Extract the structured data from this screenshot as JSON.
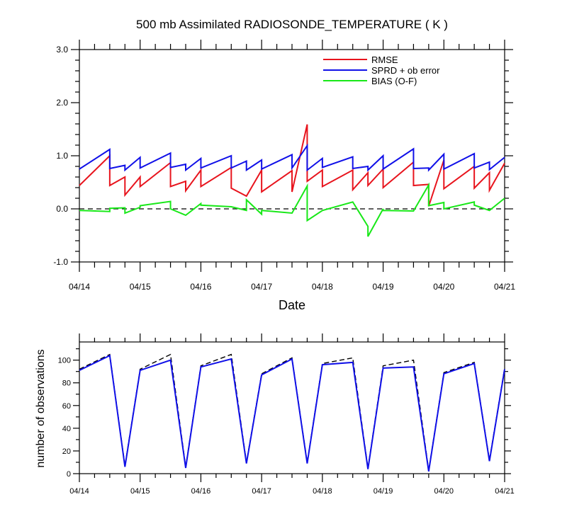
{
  "chart_data": [
    {
      "type": "line",
      "title": "500 mb Assimilated RADIOSONDE_TEMPERATURE ( K )",
      "xlabel": "Date",
      "x_tick_labels": [
        "04/14",
        "04/15",
        "04/16",
        "04/17",
        "04/18",
        "04/19",
        "04/20",
        "04/21"
      ],
      "ylim": [
        -1.0,
        3.0
      ],
      "y_tick_labels": [
        "-1.0",
        "0.0",
        "1.0",
        "2.0",
        "3.0"
      ],
      "y_ticks": [
        -1.0,
        0.0,
        1.0,
        2.0,
        3.0
      ],
      "legend_position": "top-right",
      "reference_line": 0.0,
      "series": [
        {
          "name": "RMSE",
          "color": "#e8141d",
          "points": [
            [
              0.0,
              0.44
            ],
            [
              0.5,
              1.0
            ],
            [
              0.5,
              0.44
            ],
            [
              0.75,
              0.6
            ],
            [
              0.75,
              0.26
            ],
            [
              1.0,
              0.6
            ],
            [
              1.0,
              0.42
            ],
            [
              1.5,
              0.87
            ],
            [
              1.5,
              0.42
            ],
            [
              1.75,
              0.52
            ],
            [
              1.75,
              0.34
            ],
            [
              2.0,
              0.73
            ],
            [
              2.0,
              0.42
            ],
            [
              2.5,
              0.78
            ],
            [
              2.5,
              0.39
            ],
            [
              2.75,
              0.24
            ],
            [
              3.0,
              0.73
            ],
            [
              3.0,
              0.32
            ],
            [
              3.5,
              0.72
            ],
            [
              3.5,
              0.32
            ],
            [
              3.75,
              1.59
            ],
            [
              3.75,
              0.52
            ],
            [
              4.0,
              0.73
            ],
            [
              4.0,
              0.42
            ],
            [
              4.5,
              0.73
            ],
            [
              4.5,
              0.36
            ],
            [
              4.75,
              0.68
            ],
            [
              4.75,
              0.44
            ],
            [
              5.0,
              0.75
            ],
            [
              5.0,
              0.4
            ],
            [
              5.5,
              0.88
            ],
            [
              5.5,
              0.44
            ],
            [
              5.75,
              0.46
            ],
            [
              5.75,
              0.05
            ],
            [
              6.0,
              0.92
            ],
            [
              6.0,
              0.38
            ],
            [
              6.5,
              0.8
            ],
            [
              6.5,
              0.39
            ],
            [
              6.75,
              0.68
            ],
            [
              6.75,
              0.35
            ],
            [
              7.0,
              0.86
            ]
          ]
        },
        {
          "name": "SPRD + ob error",
          "color": "#1010e8",
          "points": [
            [
              0.0,
              0.75
            ],
            [
              0.5,
              1.12
            ],
            [
              0.5,
              0.76
            ],
            [
              0.75,
              0.82
            ],
            [
              0.75,
              0.73
            ],
            [
              1.0,
              0.97
            ],
            [
              1.0,
              0.77
            ],
            [
              1.5,
              1.05
            ],
            [
              1.5,
              0.78
            ],
            [
              1.75,
              0.84
            ],
            [
              1.75,
              0.73
            ],
            [
              2.0,
              0.95
            ],
            [
              2.0,
              0.77
            ],
            [
              2.5,
              1.0
            ],
            [
              2.5,
              0.77
            ],
            [
              2.75,
              0.9
            ],
            [
              2.75,
              0.73
            ],
            [
              3.0,
              0.92
            ],
            [
              3.0,
              0.75
            ],
            [
              3.5,
              1.02
            ],
            [
              3.5,
              0.77
            ],
            [
              3.75,
              1.19
            ],
            [
              3.75,
              0.73
            ],
            [
              4.0,
              0.95
            ],
            [
              4.0,
              0.78
            ],
            [
              4.5,
              0.98
            ],
            [
              4.5,
              0.76
            ],
            [
              4.75,
              0.8
            ],
            [
              4.75,
              0.73
            ],
            [
              5.0,
              1.0
            ],
            [
              5.0,
              0.75
            ],
            [
              5.5,
              1.13
            ],
            [
              5.5,
              0.76
            ],
            [
              5.75,
              0.77
            ],
            [
              5.75,
              0.73
            ],
            [
              6.0,
              1.03
            ],
            [
              6.0,
              0.75
            ],
            [
              6.5,
              1.04
            ],
            [
              6.5,
              0.77
            ],
            [
              6.75,
              0.88
            ],
            [
              6.75,
              0.74
            ],
            [
              7.0,
              0.97
            ]
          ]
        },
        {
          "name": "BIAS (O-F)",
          "color": "#18e818",
          "points": [
            [
              0.0,
              -0.03
            ],
            [
              0.5,
              -0.05
            ],
            [
              0.5,
              0.01
            ],
            [
              0.75,
              0.02
            ],
            [
              0.75,
              -0.08
            ],
            [
              1.0,
              0.03
            ],
            [
              1.0,
              0.06
            ],
            [
              1.5,
              0.14
            ],
            [
              1.5,
              0.0
            ],
            [
              1.75,
              -0.12
            ],
            [
              2.0,
              0.1
            ],
            [
              2.0,
              0.07
            ],
            [
              2.5,
              0.04
            ],
            [
              2.75,
              -0.03
            ],
            [
              2.75,
              0.17
            ],
            [
              3.0,
              -0.1
            ],
            [
              3.0,
              -0.03
            ],
            [
              3.5,
              -0.08
            ],
            [
              3.75,
              0.43
            ],
            [
              3.75,
              -0.22
            ],
            [
              4.0,
              -0.03
            ],
            [
              4.5,
              0.13
            ],
            [
              4.75,
              -0.33
            ],
            [
              4.75,
              -0.52
            ],
            [
              5.0,
              0.0
            ],
            [
              5.0,
              -0.03
            ],
            [
              5.5,
              -0.04
            ],
            [
              5.75,
              0.45
            ],
            [
              5.75,
              0.06
            ],
            [
              6.0,
              0.12
            ],
            [
              6.0,
              0.0
            ],
            [
              6.5,
              0.13
            ],
            [
              6.5,
              0.07
            ],
            [
              6.75,
              -0.03
            ],
            [
              7.0,
              0.2
            ]
          ]
        }
      ]
    },
    {
      "type": "line",
      "ylabel": "number of observations",
      "x_tick_labels": [
        "04/14",
        "04/15",
        "04/16",
        "04/17",
        "04/18",
        "04/19",
        "04/20",
        "04/21"
      ],
      "ylim": [
        0,
        116
      ],
      "y_tick_labels": [
        "0",
        "20",
        "40",
        "60",
        "80",
        "100"
      ],
      "y_ticks": [
        0,
        20,
        40,
        60,
        80,
        100
      ],
      "series": [
        {
          "color": "#000000",
          "dash": true,
          "points": [
            [
              0.0,
              92
            ],
            [
              0.5,
              105
            ],
            [
              0.75,
              7
            ],
            [
              1.0,
              92
            ],
            [
              1.5,
              105
            ],
            [
              1.75,
              6
            ],
            [
              2.0,
              95
            ],
            [
              2.5,
              105
            ],
            [
              2.75,
              10
            ],
            [
              3.0,
              88
            ],
            [
              3.5,
              102
            ],
            [
              3.75,
              10
            ],
            [
              4.0,
              97
            ],
            [
              4.5,
              102
            ],
            [
              4.75,
              5
            ],
            [
              5.0,
              95
            ],
            [
              5.5,
              100
            ],
            [
              5.75,
              3
            ],
            [
              6.0,
              89
            ],
            [
              6.5,
              98
            ],
            [
              6.75,
              12
            ],
            [
              7.0,
              93
            ]
          ]
        },
        {
          "color": "#1010e8",
          "dash": false,
          "points": [
            [
              0.0,
              91
            ],
            [
              0.5,
              104
            ],
            [
              0.75,
              6
            ],
            [
              1.0,
              91
            ],
            [
              1.5,
              100
            ],
            [
              1.75,
              5
            ],
            [
              2.0,
              94
            ],
            [
              2.5,
              101
            ],
            [
              2.75,
              9
            ],
            [
              3.0,
              87
            ],
            [
              3.5,
              101
            ],
            [
              3.75,
              9
            ],
            [
              4.0,
              96
            ],
            [
              4.5,
              98
            ],
            [
              4.75,
              4
            ],
            [
              5.0,
              93
            ],
            [
              5.5,
              94
            ],
            [
              5.75,
              2
            ],
            [
              6.0,
              88
            ],
            [
              6.5,
              97
            ],
            [
              6.75,
              11
            ],
            [
              7.0,
              92
            ]
          ]
        }
      ]
    }
  ]
}
